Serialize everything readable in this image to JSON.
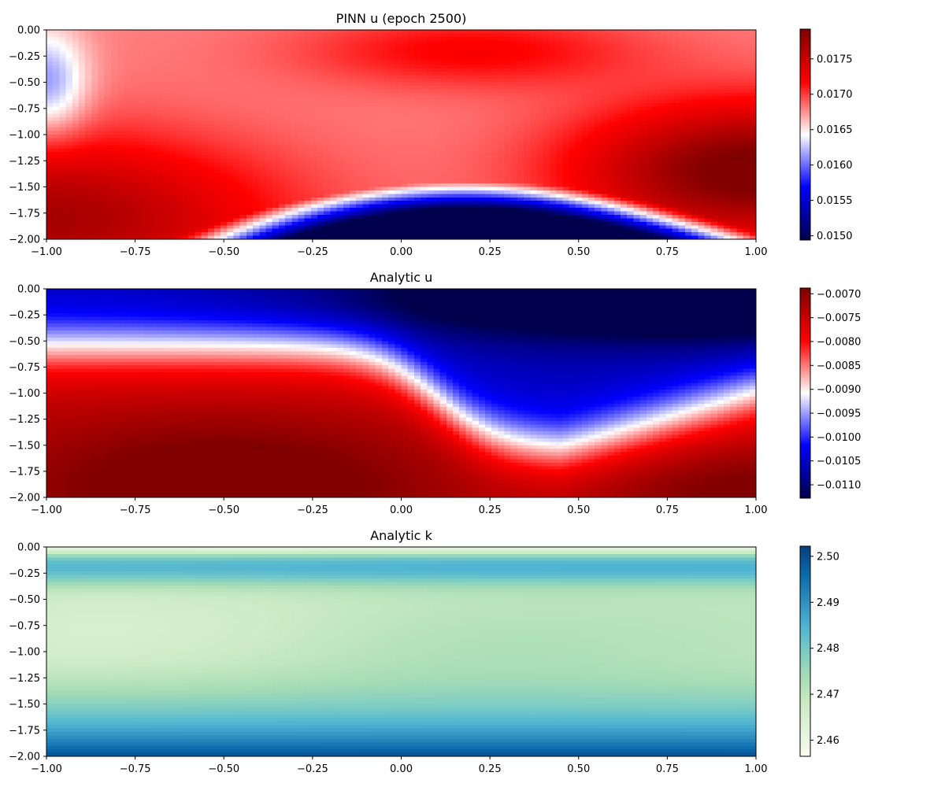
{
  "chart_data": [
    {
      "type": "heatmap",
      "title": "PINN u (epoch 2500)",
      "xlim": [
        -1.0,
        1.0
      ],
      "ylim": [
        -2.0,
        0.0
      ],
      "x_ticks": [
        "−1.00",
        "−0.75",
        "−0.50",
        "−0.25",
        "0.00",
        "0.25",
        "0.50",
        "0.75",
        "1.00"
      ],
      "y_ticks": [
        "0.00",
        "−0.25",
        "−0.50",
        "−0.75",
        "−1.00",
        "−1.25",
        "−1.50",
        "−1.75",
        "−2.00"
      ],
      "colormap": "seismic",
      "color_range": [
        0.01494,
        0.01792
      ],
      "colorbar_ticks": [
        "0.0175",
        "0.0170",
        "0.0165",
        "0.0160",
        "0.0155",
        "0.0150"
      ],
      "colorbar_tick_values": [
        0.0175,
        0.017,
        0.0165,
        0.016,
        0.0155,
        0.015
      ],
      "approx_extrema": {
        "max": 0.0179,
        "max_at": [
          1.0,
          -1.4
        ],
        "min": 0.0149,
        "min_at": [
          0.25,
          -2.0
        ]
      }
    },
    {
      "type": "heatmap",
      "title": "Analytic u",
      "xlim": [
        -1.0,
        1.0
      ],
      "ylim": [
        -2.0,
        0.0
      ],
      "x_ticks": [
        "−1.00",
        "−0.75",
        "−0.50",
        "−0.25",
        "0.00",
        "0.25",
        "0.50",
        "0.75",
        "1.00"
      ],
      "y_ticks": [
        "0.00",
        "−0.25",
        "−0.50",
        "−0.75",
        "−1.00",
        "−1.25",
        "−1.50",
        "−1.75",
        "−2.00"
      ],
      "colormap": "seismic",
      "color_range": [
        -0.01128,
        -0.00688
      ],
      "colorbar_ticks": [
        "−0.0070",
        "−0.0075",
        "−0.0080",
        "−0.0085",
        "−0.0090",
        "−0.0095",
        "−0.0100",
        "−0.0105",
        "−0.0110"
      ],
      "colorbar_tick_values": [
        -0.007,
        -0.0075,
        -0.008,
        -0.0085,
        -0.009,
        -0.0095,
        -0.01,
        -0.0105,
        -0.011
      ],
      "approx_extrema": {
        "max": -0.007,
        "max_at": [
          -0.5,
          -2.0
        ],
        "min": -0.0112,
        "min_at": [
          1.0,
          0.0
        ]
      }
    },
    {
      "type": "heatmap",
      "title": "Analytic k",
      "xlim": [
        -1.0,
        1.0
      ],
      "ylim": [
        -2.0,
        0.0
      ],
      "x_ticks": [
        "−1.00",
        "−0.75",
        "−0.50",
        "−0.25",
        "0.00",
        "0.25",
        "0.50",
        "0.75",
        "1.00"
      ],
      "y_ticks": [
        "0.00",
        "−0.25",
        "−0.50",
        "−0.75",
        "−1.00",
        "−1.25",
        "−1.50",
        "−1.75",
        "−2.00"
      ],
      "colormap": "GnBu",
      "color_range": [
        2.4565,
        2.5022
      ],
      "colorbar_ticks": [
        "2.50",
        "2.49",
        "2.48",
        "2.47",
        "2.46"
      ],
      "colorbar_tick_values": [
        2.5,
        2.49,
        2.48,
        2.47,
        2.46
      ],
      "approx_extrema": {
        "max": 2.502,
        "max_at": [
          0.0,
          -2.0
        ],
        "min": 2.457,
        "min_at": [
          1.0,
          0.0
        ]
      }
    }
  ]
}
